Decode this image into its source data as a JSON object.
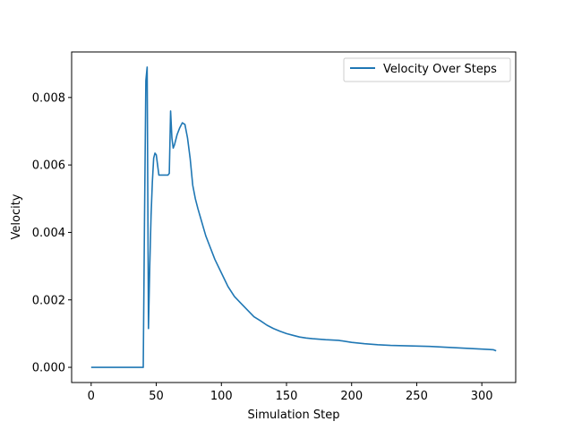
{
  "chart_data": {
    "type": "line",
    "xlabel": "Simulation Step",
    "ylabel": "Velocity",
    "xlim": [
      -15,
      326
    ],
    "ylim": [
      -0.00045,
      0.00935
    ],
    "x_ticks": [
      0,
      50,
      100,
      150,
      200,
      250,
      300
    ],
    "x_tick_labels": [
      "0",
      "50",
      "100",
      "150",
      "200",
      "250",
      "300"
    ],
    "y_ticks": [
      0.0,
      0.002,
      0.004,
      0.006,
      0.008
    ],
    "y_tick_labels": [
      "0.000",
      "0.002",
      "0.004",
      "0.006",
      "0.008"
    ],
    "grid": false,
    "legend_position": "top-right",
    "series": [
      {
        "name": "Velocity Over Steps",
        "color": "#1f77b4",
        "points": [
          [
            0,
            0.0
          ],
          [
            10,
            0.0
          ],
          [
            20,
            0.0
          ],
          [
            30,
            0.0
          ],
          [
            40,
            0.0
          ],
          [
            41,
            0.0045
          ],
          [
            42,
            0.0085
          ],
          [
            43,
            0.0089
          ],
          [
            44,
            0.00115
          ],
          [
            45,
            0.003
          ],
          [
            46,
            0.0045
          ],
          [
            47,
            0.0055
          ],
          [
            48,
            0.0062
          ],
          [
            49,
            0.00635
          ],
          [
            50,
            0.0063
          ],
          [
            51,
            0.006
          ],
          [
            52,
            0.0057
          ],
          [
            55,
            0.0057
          ],
          [
            59,
            0.0057
          ],
          [
            60,
            0.00575
          ],
          [
            61,
            0.0076
          ],
          [
            62,
            0.0068
          ],
          [
            63,
            0.0065
          ],
          [
            64,
            0.0066
          ],
          [
            66,
            0.0069
          ],
          [
            68,
            0.0071
          ],
          [
            70,
            0.00725
          ],
          [
            72,
            0.0072
          ],
          [
            74,
            0.0068
          ],
          [
            76,
            0.0062
          ],
          [
            77,
            0.0058
          ],
          [
            78,
            0.0054
          ],
          [
            80,
            0.005
          ],
          [
            82,
            0.0047
          ],
          [
            85,
            0.0043
          ],
          [
            88,
            0.0039
          ],
          [
            90,
            0.0037
          ],
          [
            95,
            0.0032
          ],
          [
            100,
            0.0028
          ],
          [
            105,
            0.0024
          ],
          [
            110,
            0.0021
          ],
          [
            115,
            0.0019
          ],
          [
            120,
            0.0017
          ],
          [
            125,
            0.0015
          ],
          [
            130,
            0.00138
          ],
          [
            135,
            0.00125
          ],
          [
            140,
            0.00115
          ],
          [
            145,
            0.00107
          ],
          [
            150,
            0.001
          ],
          [
            155,
            0.00095
          ],
          [
            160,
            0.0009
          ],
          [
            165,
            0.00087
          ],
          [
            170,
            0.00085
          ],
          [
            180,
            0.00082
          ],
          [
            190,
            0.0008
          ],
          [
            200,
            0.00074
          ],
          [
            210,
            0.0007
          ],
          [
            220,
            0.00067
          ],
          [
            230,
            0.00065
          ],
          [
            240,
            0.00064
          ],
          [
            250,
            0.00063
          ],
          [
            260,
            0.00062
          ],
          [
            270,
            0.0006
          ],
          [
            280,
            0.00058
          ],
          [
            290,
            0.00056
          ],
          [
            300,
            0.00054
          ],
          [
            305,
            0.00053
          ],
          [
            309,
            0.00052
          ],
          [
            311,
            0.00049
          ]
        ]
      }
    ]
  }
}
